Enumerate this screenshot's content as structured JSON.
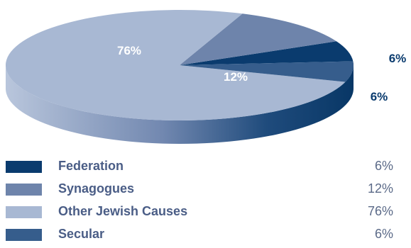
{
  "chart_data": {
    "type": "pie",
    "title": "",
    "series": [
      {
        "name": "Federation",
        "value": 6,
        "label": "6%",
        "color": "#0a3b6e"
      },
      {
        "name": "Synagogues",
        "value": 12,
        "label": "12%",
        "color": "#6e84ab"
      },
      {
        "name": "Other Jewish Causes",
        "value": 76,
        "label": "76%",
        "color": "#a8b8d3"
      },
      {
        "name": "Secular",
        "value": 6,
        "label": "6%",
        "color": "#365d8c"
      }
    ],
    "legend_placement": "bottom"
  }
}
